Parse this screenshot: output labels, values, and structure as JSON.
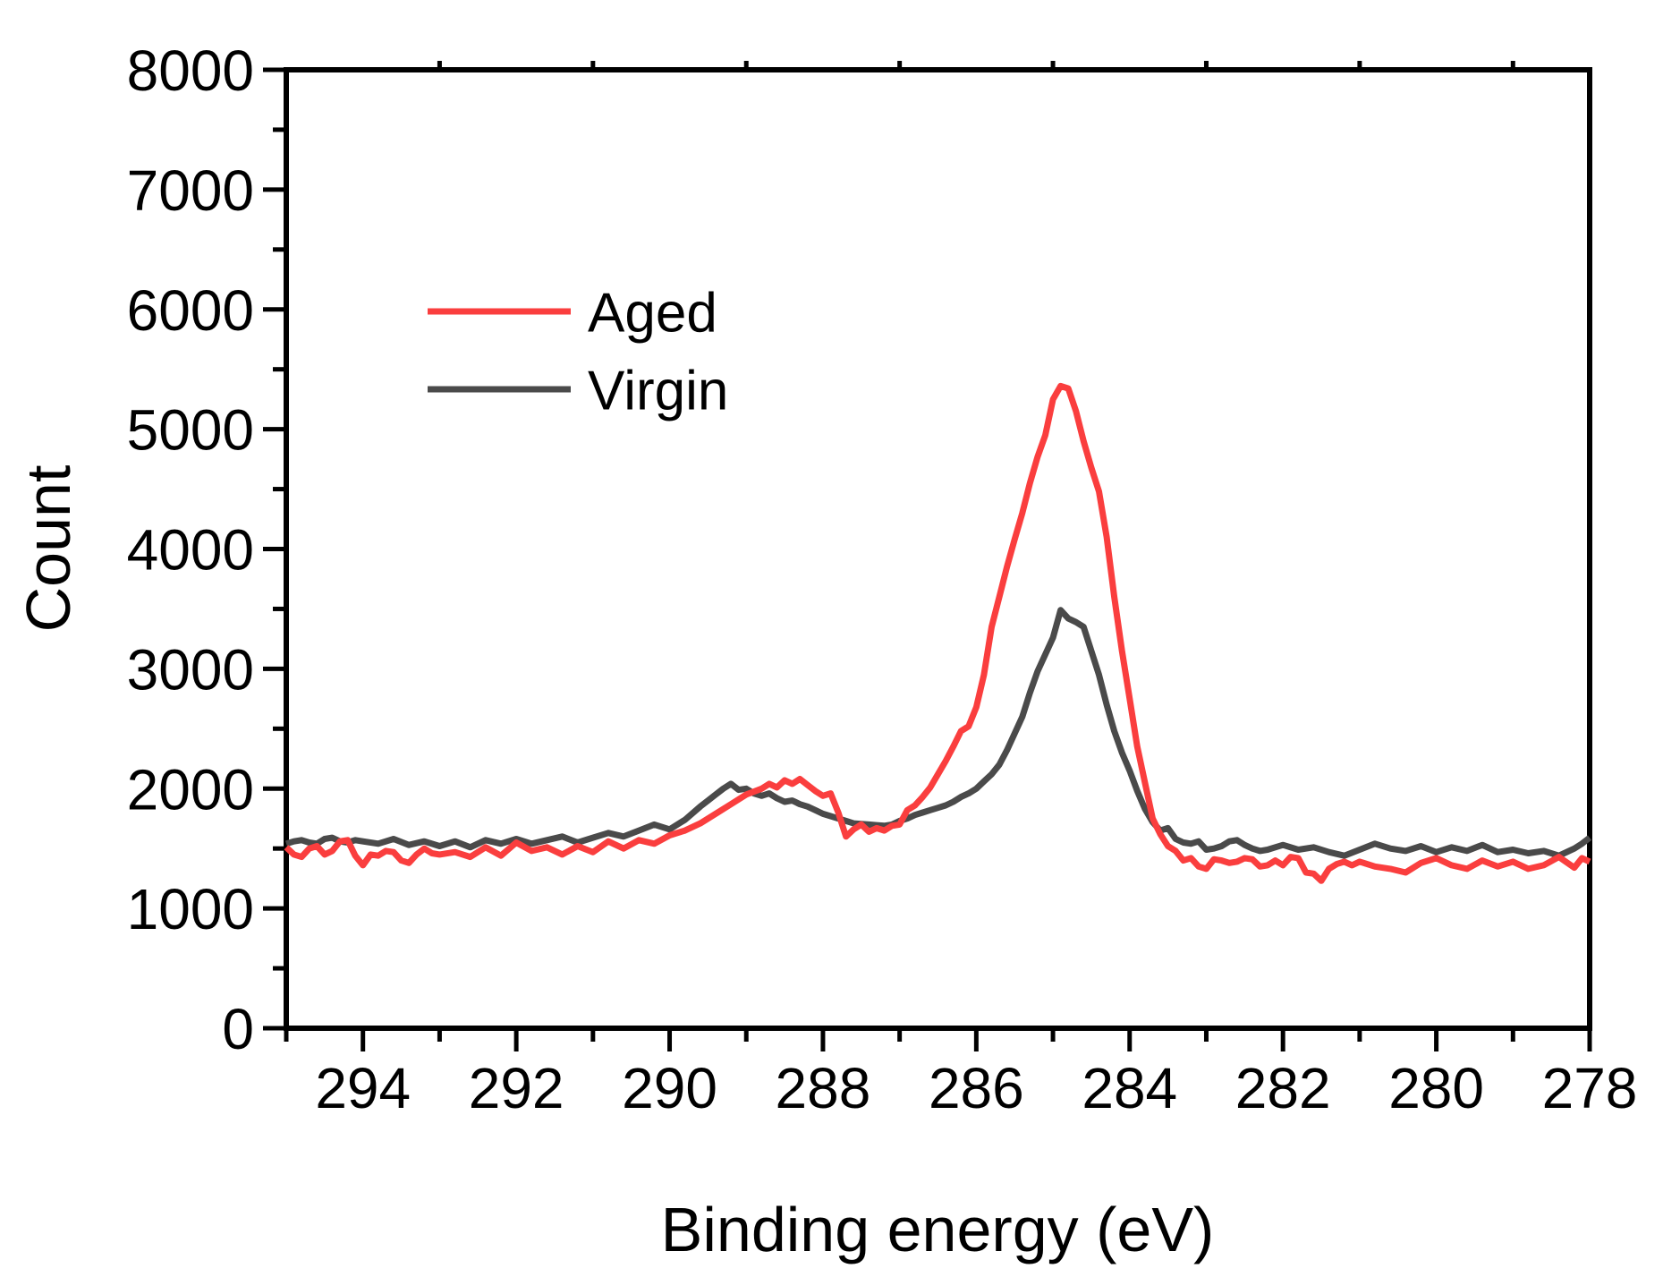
{
  "figure": {
    "background": "#ffffff"
  },
  "chart_data": {
    "type": "line",
    "title": "",
    "xlabel": "Binding energy (eV)",
    "ylabel": "Count",
    "xlim": [
      295,
      278
    ],
    "ylim": [
      0,
      8000
    ],
    "x_axis": {
      "direction": "reversed",
      "major_tick_values": [
        294,
        292,
        290,
        288,
        286,
        284,
        282,
        280,
        278
      ],
      "major_tick_labels": [
        "294",
        "292",
        "290",
        "288",
        "286",
        "284",
        "282",
        "280",
        "278"
      ],
      "minor_tick_values": [
        295,
        293,
        291,
        289,
        287,
        285,
        283,
        281,
        279
      ],
      "top_tick_values": [
        293,
        291,
        289,
        287,
        285,
        283,
        281,
        279
      ]
    },
    "y_axis": {
      "major_tick_values": [
        0,
        1000,
        2000,
        3000,
        4000,
        5000,
        6000,
        7000,
        8000
      ],
      "major_tick_labels": [
        "0",
        "1000",
        "2000",
        "3000",
        "4000",
        "5000",
        "6000",
        "7000",
        "8000"
      ],
      "minor_tick_values": [
        500,
        1500,
        2500,
        3500,
        4500,
        5500,
        6500,
        7500
      ]
    },
    "legend": {
      "position": "upper-left-inside",
      "entries": [
        "Aged",
        "Virgin"
      ]
    },
    "series": [
      {
        "name": "Aged",
        "color": "#fa3e3e",
        "points": [
          [
            295.0,
            1510
          ],
          [
            294.9,
            1450
          ],
          [
            294.8,
            1430
          ],
          [
            294.7,
            1500
          ],
          [
            294.6,
            1520
          ],
          [
            294.5,
            1450
          ],
          [
            294.4,
            1480
          ],
          [
            294.3,
            1560
          ],
          [
            294.2,
            1570
          ],
          [
            294.1,
            1440
          ],
          [
            294.0,
            1360
          ],
          [
            293.9,
            1450
          ],
          [
            293.8,
            1440
          ],
          [
            293.7,
            1480
          ],
          [
            293.6,
            1470
          ],
          [
            293.5,
            1400
          ],
          [
            293.4,
            1380
          ],
          [
            293.3,
            1450
          ],
          [
            293.2,
            1500
          ],
          [
            293.1,
            1460
          ],
          [
            293.0,
            1450
          ],
          [
            292.8,
            1470
          ],
          [
            292.6,
            1430
          ],
          [
            292.4,
            1510
          ],
          [
            292.2,
            1440
          ],
          [
            292.0,
            1550
          ],
          [
            291.8,
            1480
          ],
          [
            291.6,
            1510
          ],
          [
            291.4,
            1450
          ],
          [
            291.2,
            1520
          ],
          [
            291.0,
            1470
          ],
          [
            290.8,
            1560
          ],
          [
            290.6,
            1500
          ],
          [
            290.4,
            1570
          ],
          [
            290.2,
            1540
          ],
          [
            290.0,
            1610
          ],
          [
            289.8,
            1650
          ],
          [
            289.6,
            1710
          ],
          [
            289.4,
            1790
          ],
          [
            289.2,
            1870
          ],
          [
            289.0,
            1950
          ],
          [
            288.8,
            2000
          ],
          [
            288.7,
            2040
          ],
          [
            288.6,
            2010
          ],
          [
            288.5,
            2070
          ],
          [
            288.4,
            2040
          ],
          [
            288.3,
            2080
          ],
          [
            288.2,
            2030
          ],
          [
            288.1,
            1980
          ],
          [
            288.0,
            1940
          ],
          [
            287.9,
            1960
          ],
          [
            287.8,
            1800
          ],
          [
            287.7,
            1600
          ],
          [
            287.6,
            1660
          ],
          [
            287.5,
            1700
          ],
          [
            287.4,
            1640
          ],
          [
            287.3,
            1670
          ],
          [
            287.2,
            1650
          ],
          [
            287.1,
            1690
          ],
          [
            287.0,
            1700
          ],
          [
            286.9,
            1820
          ],
          [
            286.8,
            1860
          ],
          [
            286.7,
            1930
          ],
          [
            286.6,
            2010
          ],
          [
            286.5,
            2120
          ],
          [
            286.4,
            2230
          ],
          [
            286.3,
            2350
          ],
          [
            286.2,
            2480
          ],
          [
            286.1,
            2520
          ],
          [
            286.0,
            2680
          ],
          [
            285.9,
            2950
          ],
          [
            285.8,
            3350
          ],
          [
            285.7,
            3600
          ],
          [
            285.6,
            3850
          ],
          [
            285.5,
            4080
          ],
          [
            285.4,
            4300
          ],
          [
            285.3,
            4550
          ],
          [
            285.2,
            4770
          ],
          [
            285.1,
            4950
          ],
          [
            285.0,
            5250
          ],
          [
            284.9,
            5360
          ],
          [
            284.8,
            5340
          ],
          [
            284.7,
            5150
          ],
          [
            284.6,
            4900
          ],
          [
            284.5,
            4680
          ],
          [
            284.4,
            4480
          ],
          [
            284.3,
            4100
          ],
          [
            284.2,
            3600
          ],
          [
            284.1,
            3150
          ],
          [
            284.0,
            2750
          ],
          [
            283.9,
            2350
          ],
          [
            283.8,
            2050
          ],
          [
            283.7,
            1750
          ],
          [
            283.6,
            1620
          ],
          [
            283.5,
            1520
          ],
          [
            283.4,
            1480
          ],
          [
            283.3,
            1400
          ],
          [
            283.2,
            1420
          ],
          [
            283.1,
            1350
          ],
          [
            283.0,
            1330
          ],
          [
            282.9,
            1410
          ],
          [
            282.8,
            1400
          ],
          [
            282.7,
            1380
          ],
          [
            282.6,
            1390
          ],
          [
            282.5,
            1420
          ],
          [
            282.4,
            1410
          ],
          [
            282.3,
            1350
          ],
          [
            282.2,
            1360
          ],
          [
            282.1,
            1400
          ],
          [
            282.0,
            1360
          ],
          [
            281.9,
            1430
          ],
          [
            281.8,
            1420
          ],
          [
            281.7,
            1300
          ],
          [
            281.6,
            1290
          ],
          [
            281.5,
            1230
          ],
          [
            281.4,
            1330
          ],
          [
            281.3,
            1370
          ],
          [
            281.2,
            1390
          ],
          [
            281.1,
            1360
          ],
          [
            281.0,
            1390
          ],
          [
            280.8,
            1350
          ],
          [
            280.6,
            1330
          ],
          [
            280.4,
            1300
          ],
          [
            280.2,
            1380
          ],
          [
            280.0,
            1420
          ],
          [
            279.8,
            1360
          ],
          [
            279.6,
            1330
          ],
          [
            279.4,
            1400
          ],
          [
            279.2,
            1350
          ],
          [
            279.0,
            1390
          ],
          [
            278.8,
            1330
          ],
          [
            278.6,
            1360
          ],
          [
            278.4,
            1430
          ],
          [
            278.2,
            1340
          ],
          [
            278.1,
            1420
          ],
          [
            278.0,
            1390
          ]
        ]
      },
      {
        "name": "Virgin",
        "color": "#4a4a4a",
        "points": [
          [
            295.0,
            1540
          ],
          [
            294.9,
            1560
          ],
          [
            294.8,
            1570
          ],
          [
            294.7,
            1550
          ],
          [
            294.6,
            1540
          ],
          [
            294.5,
            1580
          ],
          [
            294.4,
            1590
          ],
          [
            294.3,
            1560
          ],
          [
            294.2,
            1550
          ],
          [
            294.1,
            1570
          ],
          [
            294.0,
            1560
          ],
          [
            293.8,
            1540
          ],
          [
            293.6,
            1580
          ],
          [
            293.4,
            1530
          ],
          [
            293.2,
            1560
          ],
          [
            293.0,
            1520
          ],
          [
            292.8,
            1560
          ],
          [
            292.6,
            1510
          ],
          [
            292.4,
            1570
          ],
          [
            292.2,
            1540
          ],
          [
            292.0,
            1580
          ],
          [
            291.8,
            1540
          ],
          [
            291.6,
            1570
          ],
          [
            291.4,
            1600
          ],
          [
            291.2,
            1550
          ],
          [
            291.0,
            1590
          ],
          [
            290.8,
            1630
          ],
          [
            290.6,
            1600
          ],
          [
            290.4,
            1650
          ],
          [
            290.2,
            1700
          ],
          [
            290.0,
            1660
          ],
          [
            289.8,
            1740
          ],
          [
            289.6,
            1850
          ],
          [
            289.5,
            1900
          ],
          [
            289.4,
            1950
          ],
          [
            289.3,
            2000
          ],
          [
            289.2,
            2040
          ],
          [
            289.1,
            1990
          ],
          [
            289.0,
            2000
          ],
          [
            288.9,
            1960
          ],
          [
            288.8,
            1940
          ],
          [
            288.7,
            1960
          ],
          [
            288.6,
            1920
          ],
          [
            288.5,
            1890
          ],
          [
            288.4,
            1900
          ],
          [
            288.3,
            1870
          ],
          [
            288.2,
            1850
          ],
          [
            288.1,
            1820
          ],
          [
            288.0,
            1790
          ],
          [
            287.9,
            1770
          ],
          [
            287.8,
            1750
          ],
          [
            287.7,
            1730
          ],
          [
            287.6,
            1710
          ],
          [
            287.5,
            1705
          ],
          [
            287.4,
            1700
          ],
          [
            287.3,
            1695
          ],
          [
            287.2,
            1690
          ],
          [
            287.1,
            1700
          ],
          [
            287.0,
            1730
          ],
          [
            286.9,
            1750
          ],
          [
            286.8,
            1780
          ],
          [
            286.7,
            1800
          ],
          [
            286.6,
            1820
          ],
          [
            286.5,
            1840
          ],
          [
            286.4,
            1860
          ],
          [
            286.3,
            1890
          ],
          [
            286.2,
            1930
          ],
          [
            286.1,
            1960
          ],
          [
            286.0,
            2000
          ],
          [
            285.9,
            2060
          ],
          [
            285.8,
            2120
          ],
          [
            285.7,
            2200
          ],
          [
            285.6,
            2320
          ],
          [
            285.5,
            2460
          ],
          [
            285.4,
            2600
          ],
          [
            285.3,
            2800
          ],
          [
            285.2,
            2980
          ],
          [
            285.1,
            3120
          ],
          [
            285.0,
            3260
          ],
          [
            284.9,
            3490
          ],
          [
            284.8,
            3420
          ],
          [
            284.7,
            3390
          ],
          [
            284.6,
            3350
          ],
          [
            284.5,
            3150
          ],
          [
            284.4,
            2950
          ],
          [
            284.3,
            2700
          ],
          [
            284.2,
            2480
          ],
          [
            284.1,
            2300
          ],
          [
            284.0,
            2150
          ],
          [
            283.9,
            1980
          ],
          [
            283.8,
            1830
          ],
          [
            283.7,
            1720
          ],
          [
            283.6,
            1650
          ],
          [
            283.5,
            1670
          ],
          [
            283.4,
            1580
          ],
          [
            283.3,
            1550
          ],
          [
            283.2,
            1540
          ],
          [
            283.1,
            1560
          ],
          [
            283.0,
            1490
          ],
          [
            282.9,
            1500
          ],
          [
            282.8,
            1520
          ],
          [
            282.7,
            1560
          ],
          [
            282.6,
            1570
          ],
          [
            282.5,
            1530
          ],
          [
            282.4,
            1500
          ],
          [
            282.3,
            1480
          ],
          [
            282.2,
            1490
          ],
          [
            282.1,
            1510
          ],
          [
            282.0,
            1530
          ],
          [
            281.8,
            1490
          ],
          [
            281.6,
            1510
          ],
          [
            281.4,
            1470
          ],
          [
            281.2,
            1440
          ],
          [
            281.0,
            1490
          ],
          [
            280.8,
            1540
          ],
          [
            280.6,
            1500
          ],
          [
            280.4,
            1480
          ],
          [
            280.2,
            1520
          ],
          [
            280.0,
            1470
          ],
          [
            279.8,
            1510
          ],
          [
            279.6,
            1480
          ],
          [
            279.4,
            1530
          ],
          [
            279.2,
            1470
          ],
          [
            279.0,
            1490
          ],
          [
            278.8,
            1460
          ],
          [
            278.6,
            1480
          ],
          [
            278.4,
            1440
          ],
          [
            278.2,
            1500
          ],
          [
            278.1,
            1540
          ],
          [
            278.0,
            1590
          ]
        ]
      }
    ]
  }
}
